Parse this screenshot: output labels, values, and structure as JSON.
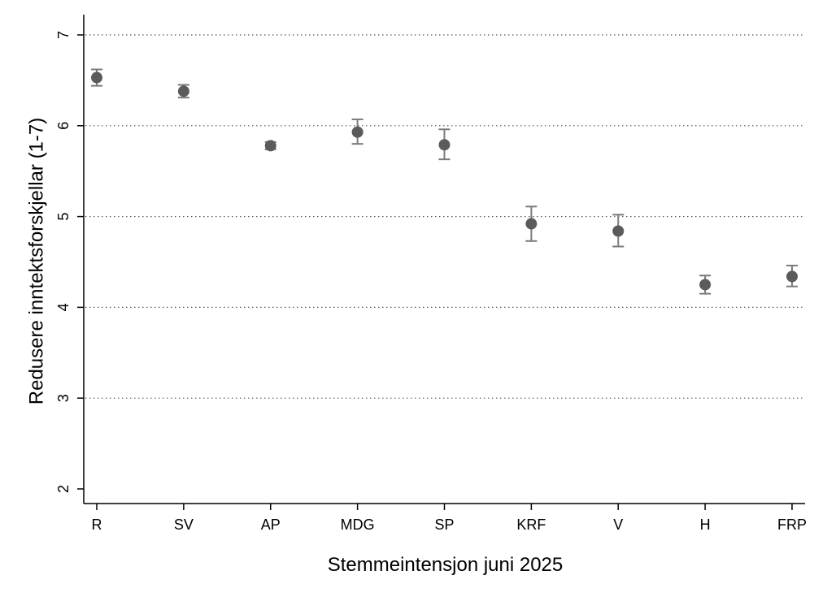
{
  "chart_data": {
    "type": "scatter",
    "title": "",
    "xlabel": "Stemmeintensjon juni 2025",
    "ylabel": "Redusere inntektsforskjellar (1-7)",
    "categories": [
      "R",
      "SV",
      "AP",
      "MDG",
      "SP",
      "KRF",
      "V",
      "H",
      "FRP"
    ],
    "values": [
      6.53,
      6.38,
      5.78,
      5.93,
      5.79,
      4.92,
      4.84,
      4.25,
      4.34
    ],
    "ci_lower": [
      6.44,
      6.31,
      5.74,
      5.8,
      5.63,
      4.73,
      4.67,
      4.15,
      4.23
    ],
    "ci_upper": [
      6.62,
      6.45,
      5.82,
      6.07,
      5.96,
      5.11,
      5.02,
      4.35,
      4.46
    ],
    "ylim": [
      2,
      7
    ],
    "yticks": [
      2,
      3,
      4,
      5,
      6,
      7
    ],
    "grid": true,
    "colors": {
      "marker": "#5b5b5b",
      "errorbar": "#7a7a7a",
      "grid": "#555555",
      "axis": "#000000"
    }
  }
}
